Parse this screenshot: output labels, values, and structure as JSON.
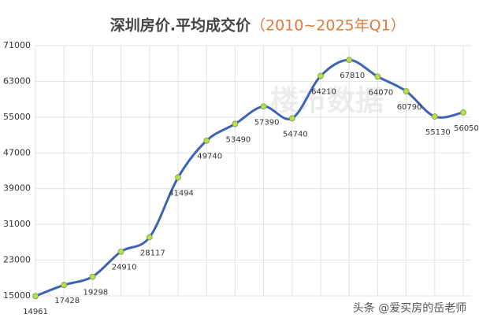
{
  "chart_data": {
    "type": "line",
    "title": "深圳房价.平均成交价",
    "subtitle": "（2010~2025年Q1）",
    "series": [
      {
        "color": "#3c63b8",
        "marker_color": "#b8e04e",
        "values": [
          14961,
          17428,
          19298,
          24910,
          28117,
          41494,
          49740,
          53490,
          57390,
          54740,
          64210,
          67810,
          64070,
          60790,
          55130,
          56050
        ]
      }
    ],
    "ylim": [
      15000,
      71000
    ],
    "yticks": [
      15000,
      23000,
      31000,
      39000,
      47000,
      55000,
      63000,
      71000
    ],
    "grid": true,
    "annotations": [
      "楼市数据",
      "头条 @爱买房的岳老师"
    ]
  }
}
